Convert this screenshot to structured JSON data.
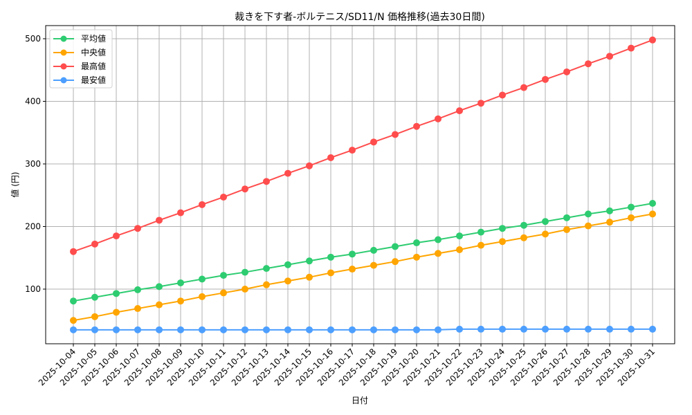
{
  "chart_data": {
    "type": "line",
    "title": "裁きを下す者-ボルテニス/SD11/N 価格推移(過去30日間)",
    "xlabel": "日付",
    "ylabel": "値 (円)",
    "ylim": [
      18,
      522
    ],
    "yticks": [
      100,
      200,
      300,
      400,
      500
    ],
    "grid": true,
    "legend_position": "upper left",
    "x": [
      "2025-10-04",
      "2025-10-05",
      "2025-10-06",
      "2025-10-07",
      "2025-10-08",
      "2025-10-09",
      "2025-10-10",
      "2025-10-11",
      "2025-10-12",
      "2025-10-13",
      "2025-10-14",
      "2025-10-15",
      "2025-10-16",
      "2025-10-17",
      "2025-10-18",
      "2025-10-19",
      "2025-10-20",
      "2025-10-21",
      "2025-10-22",
      "2025-10-23",
      "2025-10-24",
      "2025-10-25",
      "2025-10-26",
      "2025-10-27",
      "2025-10-28",
      "2025-10-29",
      "2025-10-30",
      "2025-10-31"
    ],
    "series": [
      {
        "name": "平均値",
        "color": "#2ecc71",
        "values": [
          81,
          87,
          93,
          99,
          104,
          110,
          116,
          122,
          127,
          133,
          139,
          145,
          151,
          156,
          162,
          168,
          174,
          179,
          185,
          191,
          197,
          202,
          208,
          214,
          220,
          225,
          231,
          237
        ]
      },
      {
        "name": "中央値",
        "color": "#ffa500",
        "values": [
          50,
          56,
          63,
          69,
          75,
          81,
          88,
          94,
          100,
          107,
          113,
          119,
          126,
          132,
          138,
          144,
          151,
          157,
          163,
          170,
          176,
          182,
          188,
          195,
          201,
          207,
          214,
          220
        ]
      },
      {
        "name": "最高値",
        "color": "#ff4d4d",
        "values": [
          160,
          172,
          185,
          197,
          210,
          222,
          235,
          247,
          260,
          272,
          285,
          297,
          310,
          322,
          335,
          347,
          360,
          372,
          385,
          397,
          410,
          422,
          435,
          447,
          460,
          472,
          485,
          498
        ]
      },
      {
        "name": "最安値",
        "color": "#4d9fff",
        "values": [
          35,
          35,
          35,
          35,
          35,
          35,
          35,
          35,
          35,
          35,
          35,
          35,
          35,
          35,
          35,
          35,
          35,
          35,
          36,
          36,
          36,
          36,
          36,
          36,
          36,
          36,
          36,
          36
        ]
      }
    ]
  }
}
